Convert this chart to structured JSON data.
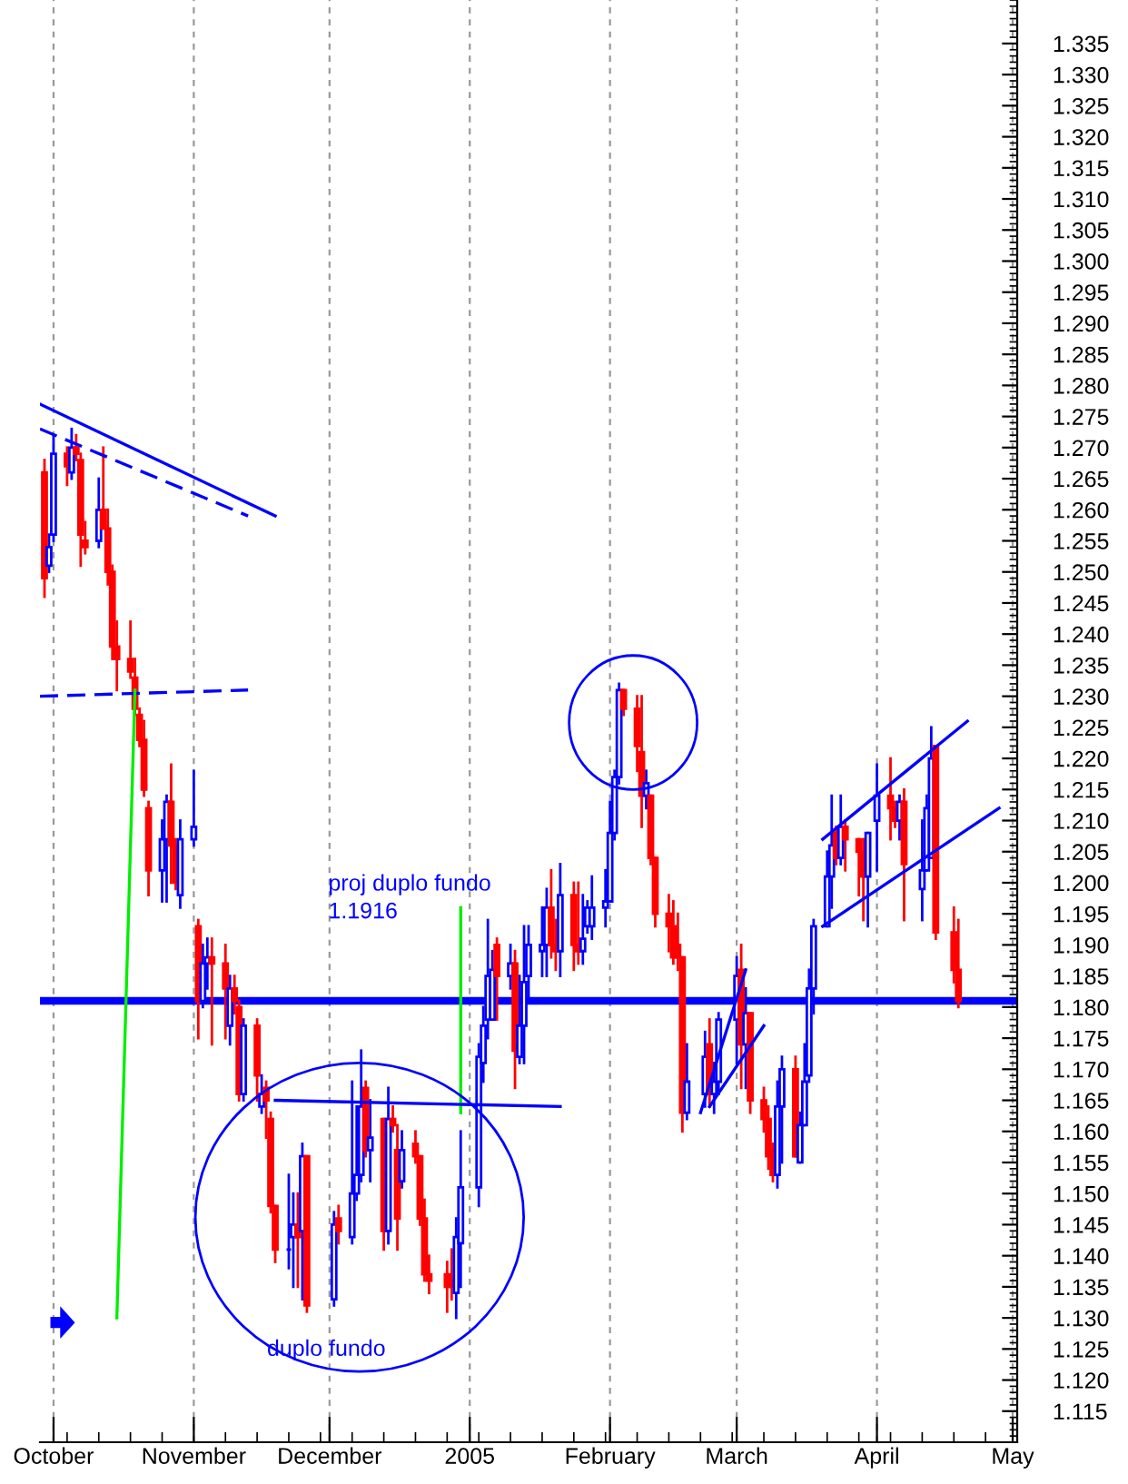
{
  "chart_data": {
    "type": "candlestick",
    "x": [
      "2004-09-29",
      "2004-09-30",
      "2004-10-01",
      "2004-10-04",
      "2004-10-05",
      "2004-10-06",
      "2004-10-07",
      "2004-10-08",
      "2004-10-11",
      "2004-10-12",
      "2004-10-13",
      "2004-10-14",
      "2004-10-15",
      "2004-10-18",
      "2004-10-19",
      "2004-10-20",
      "2004-10-21",
      "2004-10-22",
      "2004-10-25",
      "2004-10-26",
      "2004-10-27",
      "2004-10-28",
      "2004-10-29",
      "2004-11-01",
      "2004-11-02",
      "2004-11-03",
      "2004-11-04",
      "2004-11-05",
      "2004-11-08",
      "2004-11-09",
      "2004-11-10",
      "2004-11-11",
      "2004-11-12",
      "2004-11-15",
      "2004-11-16",
      "2004-11-17",
      "2004-11-18",
      "2004-11-19",
      "2004-11-22",
      "2004-11-23",
      "2004-11-24",
      "2004-11-25",
      "2004-11-26",
      "2004-12-02",
      "2004-12-03",
      "2004-12-06",
      "2004-12-07",
      "2004-12-08",
      "2004-12-09",
      "2004-12-10",
      "2004-12-13",
      "2004-12-14",
      "2004-12-15",
      "2004-12-16",
      "2004-12-17",
      "2004-12-20",
      "2004-12-21",
      "2004-12-22",
      "2004-12-23",
      "2004-12-27",
      "2004-12-28",
      "2004-12-29",
      "2004-12-30",
      "2005-01-03",
      "2005-01-04",
      "2005-01-05",
      "2005-01-06",
      "2005-01-07",
      "2005-01-10",
      "2005-01-11",
      "2005-01-12",
      "2005-01-13",
      "2005-01-14",
      "2005-01-17",
      "2005-01-18",
      "2005-01-19",
      "2005-01-20",
      "2005-01-21",
      "2005-01-24",
      "2005-01-25",
      "2005-01-26",
      "2005-01-27",
      "2005-01-28",
      "2005-01-31",
      "2005-02-01",
      "2005-02-02",
      "2005-02-03",
      "2005-02-04",
      "2005-02-07",
      "2005-02-08",
      "2005-02-09",
      "2005-02-10",
      "2005-02-11",
      "2005-02-14",
      "2005-02-15",
      "2005-02-16",
      "2005-02-17",
      "2005-02-18",
      "2005-02-22",
      "2005-02-23",
      "2005-02-24",
      "2005-02-25",
      "2005-03-01",
      "2005-03-02",
      "2005-03-03",
      "2005-03-04",
      "2005-03-07",
      "2005-03-08",
      "2005-03-09",
      "2005-03-10",
      "2005-03-11",
      "2005-03-14",
      "2005-03-15",
      "2005-03-16",
      "2005-03-17",
      "2005-03-18",
      "2005-03-21",
      "2005-03-22",
      "2005-03-23",
      "2005-03-24",
      "2005-03-25",
      "2005-03-28",
      "2005-03-29",
      "2005-03-30",
      "2005-04-01",
      "2005-04-04",
      "2005-04-05",
      "2005-04-06",
      "2005-04-07",
      "2005-04-11",
      "2005-04-12",
      "2005-04-13",
      "2005-04-14",
      "2005-04-18",
      "2005-04-19"
    ],
    "ohlc": [
      [
        1.266,
        1.268,
        1.246,
        1.249
      ],
      [
        1.251,
        1.256,
        1.25,
        1.254
      ],
      [
        1.256,
        1.272,
        1.255,
        1.269
      ],
      [
        1.269,
        1.27,
        1.264,
        1.267
      ],
      [
        1.266,
        1.273,
        1.265,
        1.27
      ],
      [
        1.27,
        1.272,
        1.268,
        1.269
      ],
      [
        1.268,
        1.269,
        1.251,
        1.256
      ],
      [
        1.255,
        1.258,
        1.253,
        1.254
      ],
      [
        1.255,
        1.265,
        1.254,
        1.26
      ],
      [
        1.26,
        1.27,
        1.257,
        1.257
      ],
      [
        1.257,
        1.26,
        1.248,
        1.25
      ],
      [
        1.25,
        1.251,
        1.236,
        1.238
      ],
      [
        1.238,
        1.242,
        1.231,
        1.236
      ],
      [
        1.236,
        1.242,
        1.233,
        1.234
      ],
      [
        1.233,
        1.236,
        1.227,
        1.228
      ],
      [
        1.227,
        1.228,
        1.222,
        1.223
      ],
      [
        1.223,
        1.226,
        1.214,
        1.215
      ],
      [
        1.212,
        1.213,
        1.198,
        1.202
      ],
      [
        1.202,
        1.21,
        1.197,
        1.207
      ],
      [
        1.207,
        1.214,
        1.197,
        1.213
      ],
      [
        1.213,
        1.219,
        1.2,
        1.206
      ],
      [
        1.206,
        1.207,
        1.199,
        1.2
      ],
      [
        1.198,
        1.21,
        1.196,
        1.207
      ],
      [
        1.207,
        1.218,
        1.206,
        1.209
      ],
      [
        1.193,
        1.194,
        1.175,
        1.181
      ],
      [
        1.181,
        1.19,
        1.18,
        1.187
      ],
      [
        1.187,
        1.191,
        1.183,
        1.188
      ],
      [
        1.188,
        1.191,
        1.174,
        1.187
      ],
      [
        1.187,
        1.19,
        1.175,
        1.183
      ],
      [
        1.177,
        1.185,
        1.174,
        1.183
      ],
      [
        1.183,
        1.185,
        1.179,
        1.181
      ],
      [
        1.18,
        1.181,
        1.165,
        1.166
      ],
      [
        1.166,
        1.178,
        1.165,
        1.177
      ],
      [
        1.177,
        1.178,
        1.165,
        1.169
      ],
      [
        1.164,
        1.169,
        1.163,
        1.166
      ],
      [
        1.167,
        1.168,
        1.159,
        1.165
      ],
      [
        1.162,
        1.163,
        1.147,
        1.148
      ],
      [
        1.148,
        1.148,
        1.139,
        1.141
      ],
      [
        1.141,
        1.153,
        1.138,
        1.141
      ],
      [
        1.143,
        1.15,
        1.135,
        1.145
      ],
      [
        1.145,
        1.15,
        1.135,
        1.143
      ],
      [
        1.144,
        1.158,
        1.133,
        1.156
      ],
      [
        1.156,
        1.156,
        1.131,
        1.132
      ],
      [
        1.133,
        1.147,
        1.132,
        1.145
      ],
      [
        1.146,
        1.148,
        1.142,
        1.144
      ],
      [
        1.143,
        1.168,
        1.142,
        1.15
      ],
      [
        1.15,
        1.164,
        1.149,
        1.153
      ],
      [
        1.153,
        1.173,
        1.152,
        1.164
      ],
      [
        1.167,
        1.168,
        1.156,
        1.157
      ],
      [
        1.157,
        1.165,
        1.152,
        1.159
      ],
      [
        1.162,
        1.162,
        1.141,
        1.144
      ],
      [
        1.144,
        1.167,
        1.142,
        1.162
      ],
      [
        1.162,
        1.164,
        1.16,
        1.161
      ],
      [
        1.157,
        1.161,
        1.141,
        1.146
      ],
      [
        1.152,
        1.16,
        1.151,
        1.157
      ],
      [
        1.158,
        1.16,
        1.155,
        1.156
      ],
      [
        1.156,
        1.156,
        1.145,
        1.146
      ],
      [
        1.146,
        1.149,
        1.136,
        1.137
      ],
      [
        1.137,
        1.14,
        1.134,
        1.136
      ],
      [
        1.137,
        1.139,
        1.131,
        1.135
      ],
      [
        1.136,
        1.141,
        1.133,
        1.135
      ],
      [
        1.134,
        1.146,
        1.13,
        1.143
      ],
      [
        1.142,
        1.16,
        1.135,
        1.151
      ],
      [
        1.151,
        1.174,
        1.148,
        1.172
      ],
      [
        1.171,
        1.18,
        1.168,
        1.177
      ],
      [
        1.178,
        1.194,
        1.175,
        1.185
      ],
      [
        1.178,
        1.189,
        1.178,
        1.186
      ],
      [
        1.19,
        1.191,
        1.178,
        1.185
      ],
      [
        1.185,
        1.19,
        1.183,
        1.187
      ],
      [
        1.187,
        1.189,
        1.167,
        1.173
      ],
      [
        1.172,
        1.185,
        1.171,
        1.177
      ],
      [
        1.177,
        1.193,
        1.171,
        1.184
      ],
      [
        1.185,
        1.193,
        1.181,
        1.19
      ],
      [
        1.189,
        1.196,
        1.185,
        1.19
      ],
      [
        1.19,
        1.199,
        1.185,
        1.196
      ],
      [
        1.196,
        1.202,
        1.188,
        1.19
      ],
      [
        1.19,
        1.194,
        1.186,
        1.189
      ],
      [
        1.189,
        1.203,
        1.185,
        1.198
      ],
      [
        1.198,
        1.2,
        1.186,
        1.19
      ],
      [
        1.19,
        1.2,
        1.187,
        1.189
      ],
      [
        1.189,
        1.198,
        1.187,
        1.191
      ],
      [
        1.193,
        1.197,
        1.192,
        1.196
      ],
      [
        1.193,
        1.201,
        1.191,
        1.196
      ],
      [
        1.196,
        1.202,
        1.193,
        1.197
      ],
      [
        1.197,
        1.213,
        1.197,
        1.208
      ],
      [
        1.208,
        1.218,
        1.207,
        1.217
      ],
      [
        1.217,
        1.232,
        1.216,
        1.231
      ],
      [
        1.231,
        1.231,
        1.227,
        1.228
      ],
      [
        1.228,
        1.23,
        1.218,
        1.222
      ],
      [
        1.221,
        1.23,
        1.209,
        1.214
      ],
      [
        1.214,
        1.218,
        1.212,
        1.216
      ],
      [
        1.214,
        1.214,
        1.203,
        1.204
      ],
      [
        1.204,
        1.204,
        1.193,
        1.195
      ],
      [
        1.195,
        1.198,
        1.189,
        1.193
      ],
      [
        1.193,
        1.197,
        1.187,
        1.188
      ],
      [
        1.19,
        1.195,
        1.186,
        1.188
      ],
      [
        1.188,
        1.188,
        1.16,
        1.163
      ],
      [
        1.163,
        1.174,
        1.162,
        1.168
      ],
      [
        1.166,
        1.176,
        1.164,
        1.172
      ],
      [
        1.174,
        1.178,
        1.164,
        1.166
      ],
      [
        1.166,
        1.171,
        1.163,
        1.168
      ],
      [
        1.168,
        1.179,
        1.166,
        1.178
      ],
      [
        1.178,
        1.188,
        1.171,
        1.185
      ],
      [
        1.186,
        1.19,
        1.167,
        1.174
      ],
      [
        1.174,
        1.183,
        1.167,
        1.179
      ],
      [
        1.179,
        1.179,
        1.163,
        1.165
      ],
      [
        1.165,
        1.167,
        1.16,
        1.162
      ],
      [
        1.162,
        1.164,
        1.154,
        1.156
      ],
      [
        1.157,
        1.158,
        1.152,
        1.153
      ],
      [
        1.153,
        1.168,
        1.151,
        1.164
      ],
      [
        1.164,
        1.172,
        1.155,
        1.17
      ],
      [
        1.17,
        1.172,
        1.156,
        1.156
      ],
      [
        1.155,
        1.163,
        1.155,
        1.161
      ],
      [
        1.161,
        1.174,
        1.161,
        1.168
      ],
      [
        1.169,
        1.186,
        1.168,
        1.183
      ],
      [
        1.183,
        1.194,
        1.179,
        1.193
      ],
      [
        1.193,
        1.205,
        1.193,
        1.201
      ],
      [
        1.201,
        1.214,
        1.196,
        1.206
      ],
      [
        1.208,
        1.209,
        1.203,
        1.204
      ],
      [
        1.204,
        1.214,
        1.203,
        1.209
      ],
      [
        1.209,
        1.21,
        1.202,
        1.207
      ],
      [
        1.207,
        1.207,
        1.198,
        1.205
      ],
      [
        1.205,
        1.207,
        1.194,
        1.201
      ],
      [
        1.201,
        1.208,
        1.193,
        1.208
      ],
      [
        1.21,
        1.219,
        1.202,
        1.214
      ],
      [
        1.214,
        1.22,
        1.207,
        1.212
      ],
      [
        1.212,
        1.213,
        1.209,
        1.21
      ],
      [
        1.21,
        1.214,
        1.207,
        1.213
      ],
      [
        1.213,
        1.215,
        1.194,
        1.203
      ],
      [
        1.199,
        1.21,
        1.194,
        1.202
      ],
      [
        1.202,
        1.214,
        1.202,
        1.212
      ],
      [
        1.204,
        1.225,
        1.204,
        1.22
      ],
      [
        1.222,
        1.222,
        1.191,
        1.192
      ],
      [
        1.192,
        1.196,
        1.184,
        1.186
      ],
      [
        1.186,
        1.194,
        1.18,
        1.181
      ]
    ],
    "colors": [
      "#ff0000",
      "#0000ff",
      "#0000ff",
      "#ff0000",
      "#0000ff",
      "#ff0000",
      "#ff0000",
      "#ff0000",
      "#0000ff",
      "#ff0000",
      "#ff0000",
      "#ff0000",
      "#ff0000",
      "#ff0000",
      "#ff0000",
      "#ff0000",
      "#ff0000",
      "#ff0000",
      "#0000ff",
      "#0000ff",
      "#ff0000",
      "#ff0000",
      "#0000ff",
      "#0000ff",
      "#ff0000",
      "#0000ff",
      "#0000ff",
      "#ff0000",
      "#ff0000",
      "#0000ff",
      "#ff0000",
      "#ff0000",
      "#0000ff",
      "#ff0000",
      "#0000ff",
      "#ff0000",
      "#ff0000",
      "#ff0000",
      "#0000ff",
      "#0000ff",
      "#ff0000",
      "#0000ff",
      "#ff0000",
      "#0000ff",
      "#ff0000",
      "#0000ff",
      "#0000ff",
      "#0000ff",
      "#ff0000",
      "#0000ff",
      "#ff0000",
      "#0000ff",
      "#ff0000",
      "#ff0000",
      "#0000ff",
      "#ff0000",
      "#ff0000",
      "#ff0000",
      "#ff0000",
      "#ff0000",
      "#ff0000",
      "#0000ff",
      "#0000ff",
      "#0000ff",
      "#0000ff",
      "#0000ff",
      "#0000ff",
      "#ff0000",
      "#0000ff",
      "#ff0000",
      "#0000ff",
      "#0000ff",
      "#0000ff",
      "#0000ff",
      "#0000ff",
      "#ff0000",
      "#ff0000",
      "#0000ff",
      "#ff0000",
      "#ff0000",
      "#0000ff",
      "#0000ff",
      "#0000ff",
      "#0000ff",
      "#0000ff",
      "#0000ff",
      "#0000ff",
      "#ff0000",
      "#ff0000",
      "#ff0000",
      "#0000ff",
      "#ff0000",
      "#ff0000",
      "#ff0000",
      "#ff0000",
      "#ff0000",
      "#ff0000",
      "#0000ff",
      "#0000ff",
      "#ff0000",
      "#0000ff",
      "#0000ff",
      "#0000ff",
      "#ff0000",
      "#0000ff",
      "#ff0000",
      "#ff0000",
      "#ff0000",
      "#ff0000",
      "#0000ff",
      "#0000ff",
      "#ff0000",
      "#0000ff",
      "#0000ff",
      "#0000ff",
      "#0000ff",
      "#0000ff",
      "#0000ff",
      "#ff0000",
      "#0000ff",
      "#ff0000",
      "#ff0000",
      "#ff0000",
      "#0000ff",
      "#0000ff",
      "#ff0000",
      "#ff0000",
      "#0000ff",
      "#ff0000",
      "#0000ff",
      "#0000ff",
      "#0000ff",
      "#ff0000",
      "#ff0000",
      "#ff0000"
    ],
    "series": [
      {
        "type": "line",
        "color": "#0000ff",
        "x": [
          "2004-09-28",
          "2004-11-19"
        ],
        "values": [
          1.277,
          1.259
        ]
      },
      {
        "type": "line",
        "color": "#0000ff",
        "line_style": "dashed",
        "x": [
          "2004-09-28",
          "2004-11-13"
        ],
        "values": [
          1.273,
          1.259
        ]
      },
      {
        "type": "line",
        "color": "#0000ff",
        "line_style": "dashed",
        "x": [
          "2004-09-28",
          "2004-11-13"
        ],
        "values": [
          1.23,
          1.231
        ]
      },
      {
        "type": "line",
        "color": "#00ee00",
        "x": [
          "2004-10-15",
          "2004-10-19"
        ],
        "values": [
          1.13,
          1.231
        ]
      },
      {
        "type": "line",
        "color": "#00ee00",
        "x": [
          "2004-12-30",
          "2004-12-30"
        ],
        "values": [
          1.163,
          1.196
        ]
      },
      {
        "type": "line",
        "color": "#0000ff",
        "x": [
          "2004-11-19",
          "2005-01-21"
        ],
        "values": [
          1.165,
          1.164
        ]
      },
      {
        "type": "line",
        "color": "#0000ff",
        "x": [
          "2005-02-21",
          "2005-03-03"
        ],
        "values": [
          1.163,
          1.186
        ]
      },
      {
        "type": "line",
        "color": "#0000ff",
        "x": [
          "2005-02-23",
          "2005-03-07"
        ],
        "values": [
          1.164,
          1.177
        ]
      },
      {
        "type": "line",
        "color": "#0000ff",
        "x": [
          "2005-03-20",
          "2005-04-21"
        ],
        "values": [
          1.207,
          1.226
        ]
      },
      {
        "type": "line",
        "color": "#0000ff",
        "x": [
          "2005-03-20",
          "2005-04-28"
        ],
        "values": [
          1.193,
          1.212
        ]
      }
    ],
    "ref_lines": [
      {
        "axis": "y",
        "value": 1.181,
        "color": "#0000ff"
      }
    ],
    "annotations": [
      "proj duplo fundo\n1.1916",
      "duplo fundo"
    ],
    "xlim": [
      "2004-09-28",
      "2005-05-02"
    ],
    "xticks": [
      {
        "value": "2004-10-01",
        "label": "October"
      },
      {
        "value": "2004-11-01",
        "label": "November"
      },
      {
        "value": "2004-12-01",
        "label": "December"
      },
      {
        "value": "2005-01-01",
        "label": "2005"
      },
      {
        "value": "2005-02-01",
        "label": "February"
      },
      {
        "value": "2005-03-01",
        "label": "March"
      },
      {
        "value": "2005-04-01",
        "label": "April"
      },
      {
        "value": "2005-05-01",
        "label": "May"
      }
    ],
    "ylim": [
      1.11,
      1.342
    ],
    "yticks": [
      1.115,
      {
        "value": 1.12,
        "label": "1.120"
      },
      1.125,
      {
        "value": 1.13,
        "label": "1.130"
      },
      1.135,
      {
        "value": 1.14,
        "label": "1.140"
      },
      1.145,
      {
        "value": 1.15,
        "label": "1.150"
      },
      1.155,
      {
        "value": 1.16,
        "label": "1.160"
      },
      1.165,
      {
        "value": 1.17,
        "label": "1.170"
      },
      1.175,
      {
        "value": 1.18,
        "label": "1.180"
      },
      1.185,
      {
        "value": 1.19,
        "label": "1.190"
      },
      1.195,
      {
        "value": 1.2,
        "label": "1.200"
      },
      1.205,
      {
        "value": 1.21,
        "label": "1.210"
      },
      1.215,
      {
        "value": 1.22,
        "label": "1.220"
      },
      1.225,
      {
        "value": 1.23,
        "label": "1.230"
      },
      1.235,
      {
        "value": 1.24,
        "label": "1.240"
      },
      1.245,
      {
        "value": 1.25,
        "label": "1.250"
      },
      1.255,
      {
        "value": 1.26,
        "label": "1.260"
      },
      1.265,
      {
        "value": 1.27,
        "label": "1.270"
      },
      1.275,
      {
        "value": 1.28,
        "label": "1.280"
      },
      1.285,
      {
        "value": 1.29,
        "label": "1.290"
      },
      1.295,
      {
        "value": 1.3,
        "label": "1.300"
      },
      1.305,
      {
        "value": 1.31,
        "label": "1.310"
      },
      1.315,
      {
        "value": 1.32,
        "label": "1.320"
      },
      1.325,
      {
        "value": 1.33,
        "label": "1.330"
      },
      1.335
    ],
    "grid": "x"
  }
}
